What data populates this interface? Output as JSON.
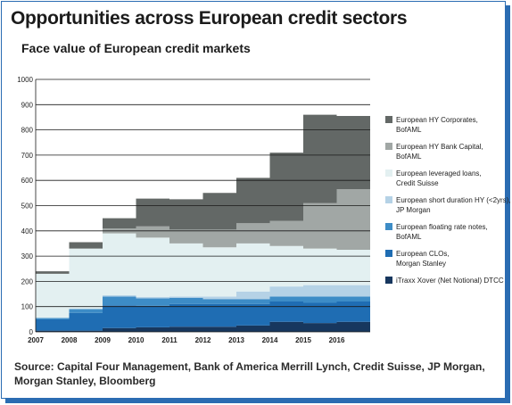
{
  "header": {
    "title": "Opportunities across European credit sectors"
  },
  "chart_data": {
    "type": "area",
    "stacked": true,
    "title": "Face value of European credit markets",
    "xlabel": "",
    "ylabel": "",
    "x": [
      "2007",
      "2008",
      "2009",
      "2010",
      "2011",
      "2012",
      "2013",
      "2014",
      "2015",
      "2016"
    ],
    "x_ticks": [
      "2007",
      "2008",
      "2009",
      "2010",
      "2011",
      "2012",
      "2013",
      "2014",
      "2015",
      "2016"
    ],
    "y_ticks": [
      0,
      100,
      200,
      300,
      400,
      500,
      600,
      700,
      800,
      900,
      1000
    ],
    "ylim": [
      0,
      1000
    ],
    "grid": true,
    "legend_position": "right",
    "series": [
      {
        "name": "iTraxx Xover (Net Notional) DTCC",
        "color": "#17375e",
        "values": [
          5,
          5,
          15,
          18,
          20,
          20,
          25,
          40,
          35,
          40
        ]
      },
      {
        "name": "European CLOs, Morgan Stanley",
        "color": "#1f6db3",
        "values": [
          45,
          70,
          90,
          85,
          90,
          90,
          85,
          80,
          80,
          80
        ]
      },
      {
        "name": "European floating rate notes, BofAML",
        "color": "#3d8cc6",
        "values": [
          5,
          15,
          35,
          30,
          25,
          20,
          20,
          20,
          25,
          20
        ]
      },
      {
        "name": "European short duration HY (<2yrs), JP Morgan",
        "color": "#b5d2e6",
        "values": [
          0,
          0,
          5,
          5,
          5,
          10,
          30,
          40,
          45,
          45
        ]
      },
      {
        "name": "European leveraged loans, Credit Suisse",
        "color": "#e3f0f1",
        "values": [
          175,
          240,
          245,
          235,
          210,
          195,
          190,
          160,
          145,
          140
        ]
      },
      {
        "name": "European HY Bank Capital, BofAML",
        "color": "#a1a7a5",
        "values": [
          0,
          0,
          20,
          45,
          55,
          70,
          80,
          100,
          180,
          240
        ]
      },
      {
        "name": "European HY Corporates, BofAML",
        "color": "#636866",
        "values": [
          10,
          25,
          40,
          110,
          120,
          145,
          180,
          270,
          350,
          290
        ]
      }
    ]
  },
  "source": {
    "text": "Source: Capital Four Management, Bank of America Merrill Lynch, Credit Suisse, JP Morgan, Morgan Stanley, Bloomberg"
  }
}
